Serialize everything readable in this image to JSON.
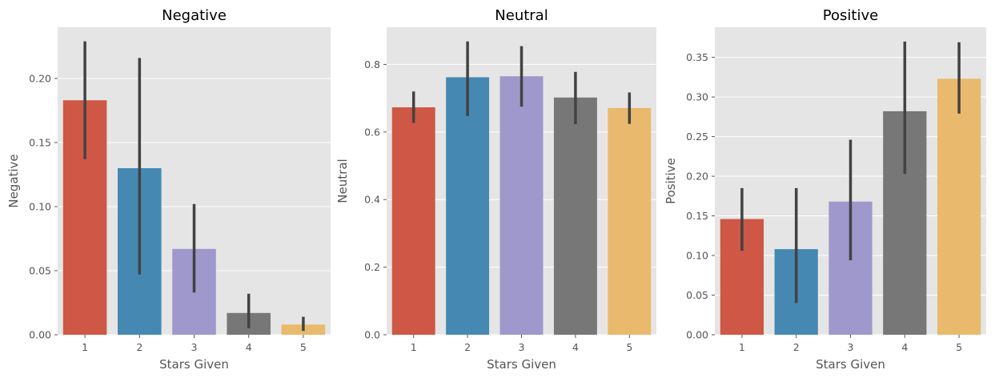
{
  "chart_data": [
    {
      "type": "bar",
      "title": "Negative",
      "xlabel": "Stars Given",
      "ylabel": "Negative",
      "categories": [
        "1",
        "2",
        "3",
        "4",
        "5"
      ],
      "values": [
        0.183,
        0.13,
        0.067,
        0.017,
        0.008
      ],
      "error_low": [
        0.137,
        0.047,
        0.033,
        0.005,
        0.003
      ],
      "error_high": [
        0.229,
        0.216,
        0.102,
        0.032,
        0.014
      ],
      "ylim": [
        0,
        0.24
      ],
      "yticks": [
        0.0,
        0.05,
        0.1,
        0.15,
        0.2
      ],
      "ytick_labels": [
        "0.00",
        "0.05",
        "0.10",
        "0.15",
        "0.20"
      ],
      "grid": true
    },
    {
      "type": "bar",
      "title": "Neutral",
      "xlabel": "Stars Given",
      "ylabel": "Neutral",
      "categories": [
        "1",
        "2",
        "3",
        "4",
        "5"
      ],
      "values": [
        0.673,
        0.762,
        0.765,
        0.702,
        0.671
      ],
      "error_low": [
        0.627,
        0.647,
        0.675,
        0.623,
        0.624
      ],
      "error_high": [
        0.72,
        0.868,
        0.854,
        0.778,
        0.717
      ],
      "ylim": [
        0,
        0.91
      ],
      "yticks": [
        0.0,
        0.2,
        0.4,
        0.6,
        0.8
      ],
      "ytick_labels": [
        "0.0",
        "0.2",
        "0.4",
        "0.6",
        "0.8"
      ],
      "grid": true
    },
    {
      "type": "bar",
      "title": "Positive",
      "xlabel": "Stars Given",
      "ylabel": "Positive",
      "categories": [
        "1",
        "2",
        "3",
        "4",
        "5"
      ],
      "values": [
        0.146,
        0.108,
        0.168,
        0.282,
        0.323
      ],
      "error_low": [
        0.106,
        0.04,
        0.094,
        0.203,
        0.279
      ],
      "error_high": [
        0.185,
        0.185,
        0.246,
        0.37,
        0.369
      ],
      "ylim": [
        0,
        0.388
      ],
      "yticks": [
        0.0,
        0.05,
        0.1,
        0.15,
        0.2,
        0.25,
        0.3,
        0.35
      ],
      "ytick_labels": [
        "0.00",
        "0.05",
        "0.10",
        "0.15",
        "0.20",
        "0.25",
        "0.30",
        "0.35"
      ],
      "grid": true
    }
  ],
  "colors": {
    "bars": [
      "#cf5745",
      "#4589b2",
      "#9f98cc",
      "#777777",
      "#e9b96d"
    ],
    "panel_bg": "#e5e5e5",
    "grid": "#ffffff",
    "error_bar": "#424242"
  }
}
